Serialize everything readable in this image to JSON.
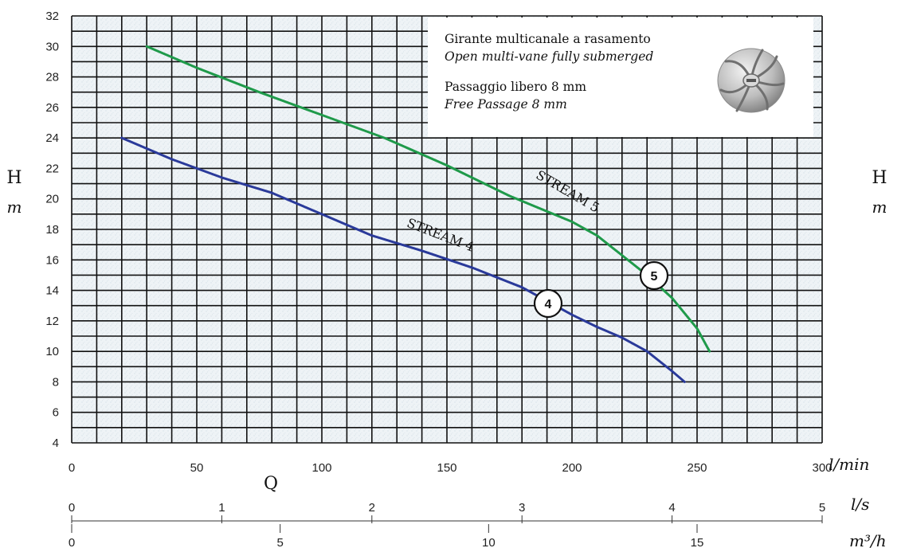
{
  "info": {
    "line1": "Girante multicanale a rasamento",
    "line2": "Open multi-vane fully submerged",
    "line3": "Passaggio libero 8 mm",
    "line4": "Free Passage 8 mm"
  },
  "axes": {
    "y_left_label": "H",
    "y_left_unit": "m",
    "y_right_label": "H",
    "y_right_unit": "m",
    "x_label": "Q",
    "unit_lmin": "l/min",
    "unit_ls": "l/s",
    "unit_m3h": "m³/h"
  },
  "chart_data": {
    "type": "line",
    "title": "",
    "xlabel": "Q",
    "ylabel": "H m",
    "xlim": [
      0,
      300
    ],
    "ylim": [
      4,
      32
    ],
    "grid": true,
    "y_ticks": [
      4,
      6,
      8,
      10,
      12,
      14,
      16,
      18,
      20,
      22,
      24,
      26,
      28,
      30,
      32
    ],
    "x_ticks_lmin": [
      0,
      50,
      100,
      150,
      200,
      250,
      300
    ],
    "x_ticks_ls": [
      0,
      1,
      2,
      3,
      4,
      5
    ],
    "x_ticks_m3h": [
      0,
      5,
      10,
      15
    ],
    "series": [
      {
        "name": "STREAM 5",
        "marker": "5",
        "color": "#1f9a4a",
        "x": [
          30,
          50,
          75,
          100,
          125,
          150,
          175,
          200,
          210,
          220,
          230,
          240,
          250,
          255
        ],
        "y": [
          30,
          28.6,
          27,
          25.5,
          24,
          22.2,
          20.2,
          18.5,
          17.6,
          16.3,
          15,
          13.5,
          11.5,
          10
        ]
      },
      {
        "name": "STREAM 4",
        "marker": "4",
        "color": "#2a3a9a",
        "x": [
          20,
          40,
          60,
          80,
          100,
          120,
          140,
          160,
          180,
          200,
          210,
          220,
          230,
          240,
          245
        ],
        "y": [
          24,
          22.6,
          21.4,
          20.4,
          19,
          17.6,
          16.6,
          15.5,
          14.2,
          12.4,
          11.6,
          10.9,
          10,
          8.7,
          8
        ]
      }
    ]
  }
}
